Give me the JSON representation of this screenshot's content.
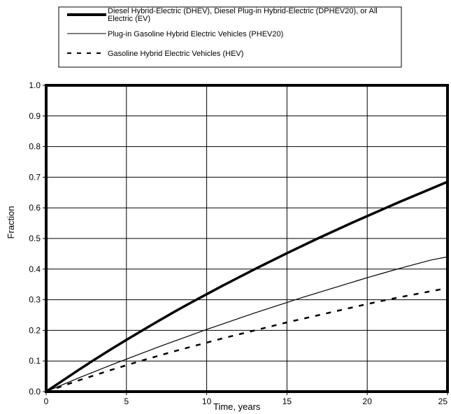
{
  "chart_data": {
    "type": "line",
    "xlabel": "Time, years",
    "ylabel": "Fraction",
    "xlim": [
      0,
      25
    ],
    "ylim": [
      0,
      1.0
    ],
    "x_ticks": [
      "0",
      "5",
      "10",
      "15",
      "20",
      "25"
    ],
    "y_ticks": [
      "0.0",
      "0.1",
      "0.2",
      "0.3",
      "0.4",
      "0.5",
      "0.6",
      "0.7",
      "0.8",
      "0.9",
      "1.0"
    ],
    "grid": true,
    "legend_position": "top",
    "x": [
      0,
      1,
      2,
      3,
      4,
      5,
      6,
      7,
      8,
      9,
      10,
      11,
      12,
      13,
      14,
      15,
      16,
      17,
      18,
      19,
      20,
      21,
      22,
      23,
      24,
      25
    ],
    "series": [
      {
        "name": "Diesel Hybrid-Electric (DHEV), Diesel Plug-in Hybrid-Electric (DPHEV20), or All Electric (EV)",
        "style": "thick",
        "values": [
          0.0,
          0.035,
          0.07,
          0.104,
          0.137,
          0.169,
          0.2,
          0.231,
          0.261,
          0.29,
          0.318,
          0.346,
          0.373,
          0.4,
          0.426,
          0.452,
          0.477,
          0.502,
          0.526,
          0.55,
          0.573,
          0.596,
          0.619,
          0.641,
          0.663,
          0.685
        ]
      },
      {
        "name": "Plug-in Gasoline Hybrid Electric Vehicles (PHEV20)",
        "style": "thin",
        "values": [
          0.0,
          0.022,
          0.044,
          0.065,
          0.086,
          0.106,
          0.126,
          0.146,
          0.165,
          0.184,
          0.203,
          0.221,
          0.239,
          0.257,
          0.274,
          0.291,
          0.308,
          0.324,
          0.34,
          0.356,
          0.372,
          0.387,
          0.402,
          0.416,
          0.43,
          0.44
        ]
      },
      {
        "name": "Gasoline Hybrid Electric Vehicles (HEV)",
        "style": "dashed",
        "values": [
          0.0,
          0.018,
          0.036,
          0.053,
          0.07,
          0.086,
          0.102,
          0.117,
          0.132,
          0.146,
          0.16,
          0.174,
          0.187,
          0.2,
          0.213,
          0.226,
          0.238,
          0.25,
          0.262,
          0.274,
          0.286,
          0.297,
          0.308,
          0.318,
          0.328,
          0.338
        ]
      }
    ]
  }
}
